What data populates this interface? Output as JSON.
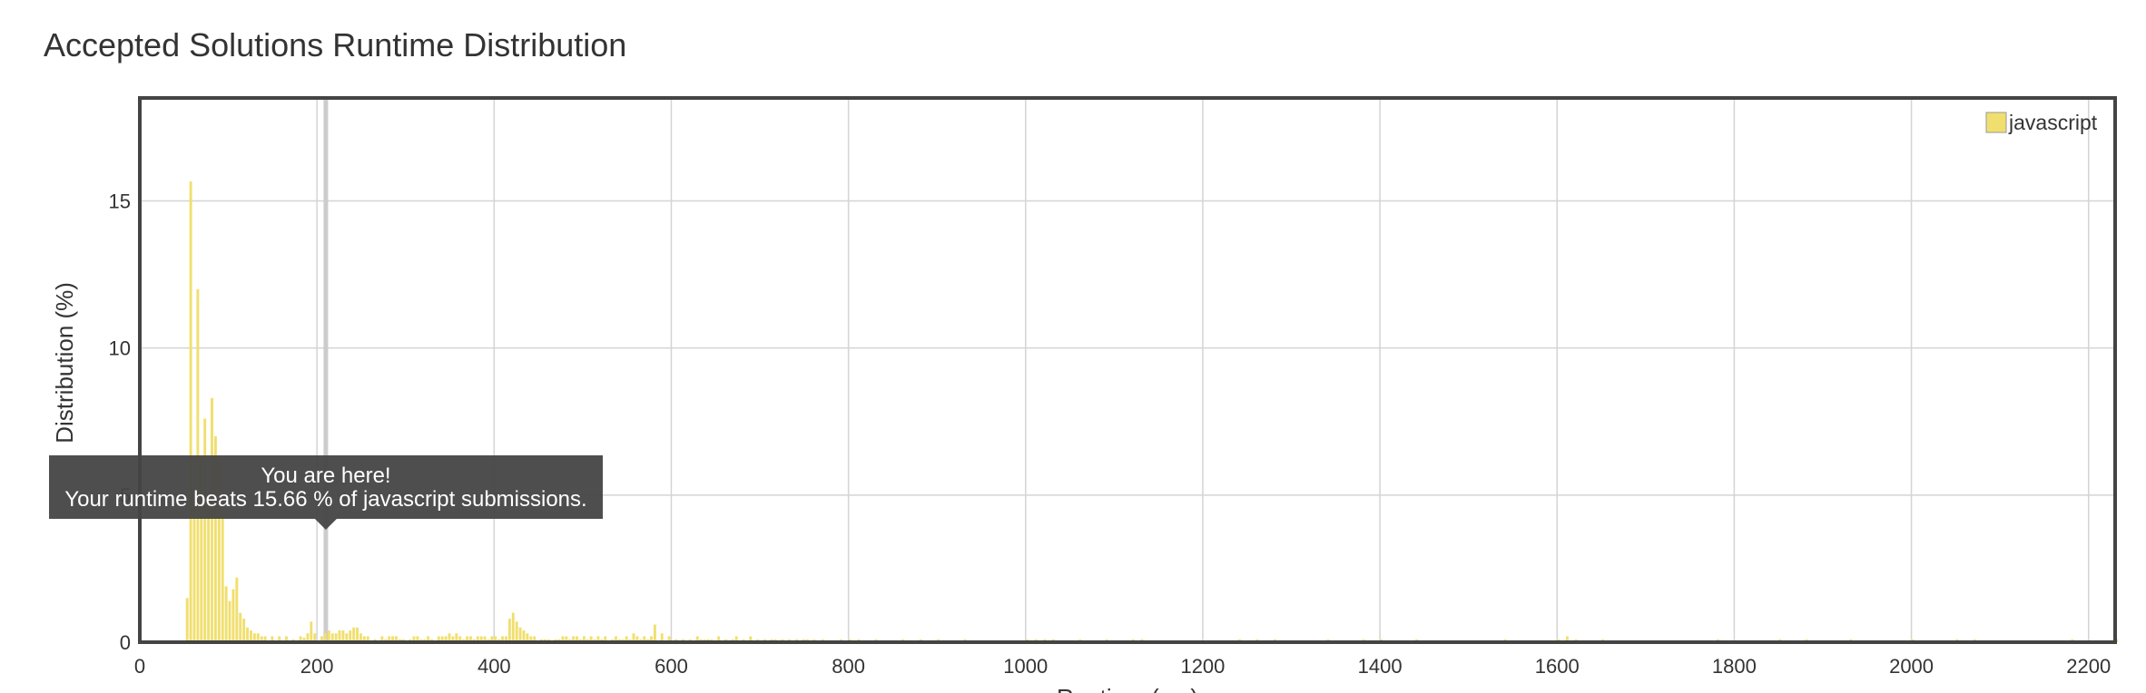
{
  "page": {
    "title": "Accepted Solutions Runtime Distribution"
  },
  "chart_data": {
    "type": "bar",
    "title": "",
    "xlabel": "Runtime (ms)",
    "ylabel": "Distribution (%)",
    "xlim": [
      0,
      2230
    ],
    "ylim": [
      0,
      18.5
    ],
    "x_ticks": [
      0,
      200,
      400,
      600,
      800,
      1000,
      1200,
      1400,
      1600,
      1800,
      2000,
      2200
    ],
    "y_ticks": [
      0,
      5,
      10,
      15
    ],
    "grid": true,
    "legend_position": "top-right",
    "series": [
      {
        "name": "javascript",
        "color": "#f0df6f",
        "bin_width_ms": 4,
        "x": [
          52,
          56,
          60,
          64,
          68,
          72,
          76,
          80,
          84,
          88,
          92,
          96,
          100,
          104,
          108,
          112,
          116,
          120,
          124,
          128,
          132,
          136,
          140,
          148,
          156,
          164,
          172,
          180,
          184,
          188,
          192,
          196,
          204,
          208,
          212,
          216,
          220,
          224,
          228,
          232,
          236,
          240,
          244,
          248,
          252,
          256,
          264,
          272,
          276,
          280,
          284,
          288,
          292,
          296,
          304,
          308,
          312,
          316,
          320,
          324,
          328,
          336,
          340,
          344,
          348,
          352,
          356,
          360,
          364,
          368,
          372,
          376,
          380,
          384,
          388,
          392,
          396,
          400,
          404,
          408,
          412,
          416,
          420,
          424,
          428,
          432,
          436,
          440,
          444,
          452,
          456,
          460,
          468,
          472,
          476,
          480,
          484,
          488,
          492,
          496,
          500,
          504,
          508,
          512,
          516,
          520,
          524,
          532,
          536,
          540,
          544,
          548,
          552,
          556,
          560,
          564,
          568,
          572,
          576,
          580,
          588,
          596,
          604,
          612,
          620,
          628,
          632,
          636,
          640,
          644,
          652,
          660,
          668,
          672,
          680,
          688,
          696,
          704,
          712,
          716,
          724,
          732,
          740,
          748,
          752,
          760,
          770,
          790,
          800,
          810,
          830,
          860,
          880,
          900,
          930,
          1000,
          1010,
          1020,
          1030,
          1060,
          1090,
          1120,
          1130,
          1240,
          1260,
          1280,
          1340,
          1380,
          1400,
          1440,
          1540,
          1600,
          1610,
          1620,
          1650,
          1780,
          1850,
          1880,
          1930,
          2000,
          2050,
          2070,
          2180,
          2230
        ],
        "values": [
          1.5,
          15.66,
          4.8,
          12.0,
          6.3,
          7.6,
          5.0,
          8.3,
          7.0,
          6.2,
          4.4,
          1.9,
          1.4,
          1.8,
          2.2,
          1.0,
          0.8,
          0.5,
          0.4,
          0.3,
          0.3,
          0.2,
          0.2,
          0.2,
          0.2,
          0.2,
          0.1,
          0.2,
          0.15,
          0.3,
          0.7,
          0.3,
          0.2,
          0.3,
          0.4,
          0.3,
          0.3,
          0.4,
          0.4,
          0.3,
          0.4,
          0.5,
          0.5,
          0.3,
          0.2,
          0.2,
          0.1,
          0.2,
          0.1,
          0.2,
          0.2,
          0.2,
          0.1,
          0.1,
          0.1,
          0.2,
          0.2,
          0.1,
          0.1,
          0.2,
          0.1,
          0.2,
          0.2,
          0.2,
          0.3,
          0.2,
          0.3,
          0.2,
          0.1,
          0.2,
          0.2,
          0.1,
          0.2,
          0.2,
          0.2,
          0.1,
          0.2,
          0.2,
          0.1,
          0.2,
          0.2,
          0.8,
          1.0,
          0.7,
          0.5,
          0.4,
          0.3,
          0.2,
          0.2,
          0.1,
          0.1,
          0.1,
          0.1,
          0.1,
          0.2,
          0.2,
          0.1,
          0.2,
          0.2,
          0.1,
          0.2,
          0.1,
          0.2,
          0.1,
          0.2,
          0.1,
          0.2,
          0.1,
          0.2,
          0.1,
          0.1,
          0.2,
          0.1,
          0.3,
          0.2,
          0.1,
          0.2,
          0.1,
          0.2,
          0.6,
          0.3,
          0.2,
          0.1,
          0.1,
          0.1,
          0.2,
          0.1,
          0.1,
          0.1,
          0.1,
          0.2,
          0.1,
          0.1,
          0.2,
          0.1,
          0.2,
          0.1,
          0.1,
          0.1,
          0.1,
          0.1,
          0.1,
          0.1,
          0.1,
          0.1,
          0.1,
          0.1,
          0.1,
          0.1,
          0.1,
          0.1,
          0.1,
          0.1,
          0.1,
          0.1,
          0.1,
          0.1,
          0.1,
          0.1,
          0.1,
          0.1,
          0.1,
          0.1,
          0.1,
          0.1,
          0.1,
          0.1,
          0.1,
          0.1,
          0.1,
          0.1,
          0.1,
          0.2,
          0.1,
          0.1,
          0.1,
          0.1,
          0.1,
          0.1,
          0.1,
          0.1,
          0.1,
          0.1,
          0.1
        ]
      }
    ],
    "tooltip": {
      "line1": "You are here!",
      "line2": "Your runtime beats 15.66 % of javascript submissions.",
      "x": 210
    }
  }
}
